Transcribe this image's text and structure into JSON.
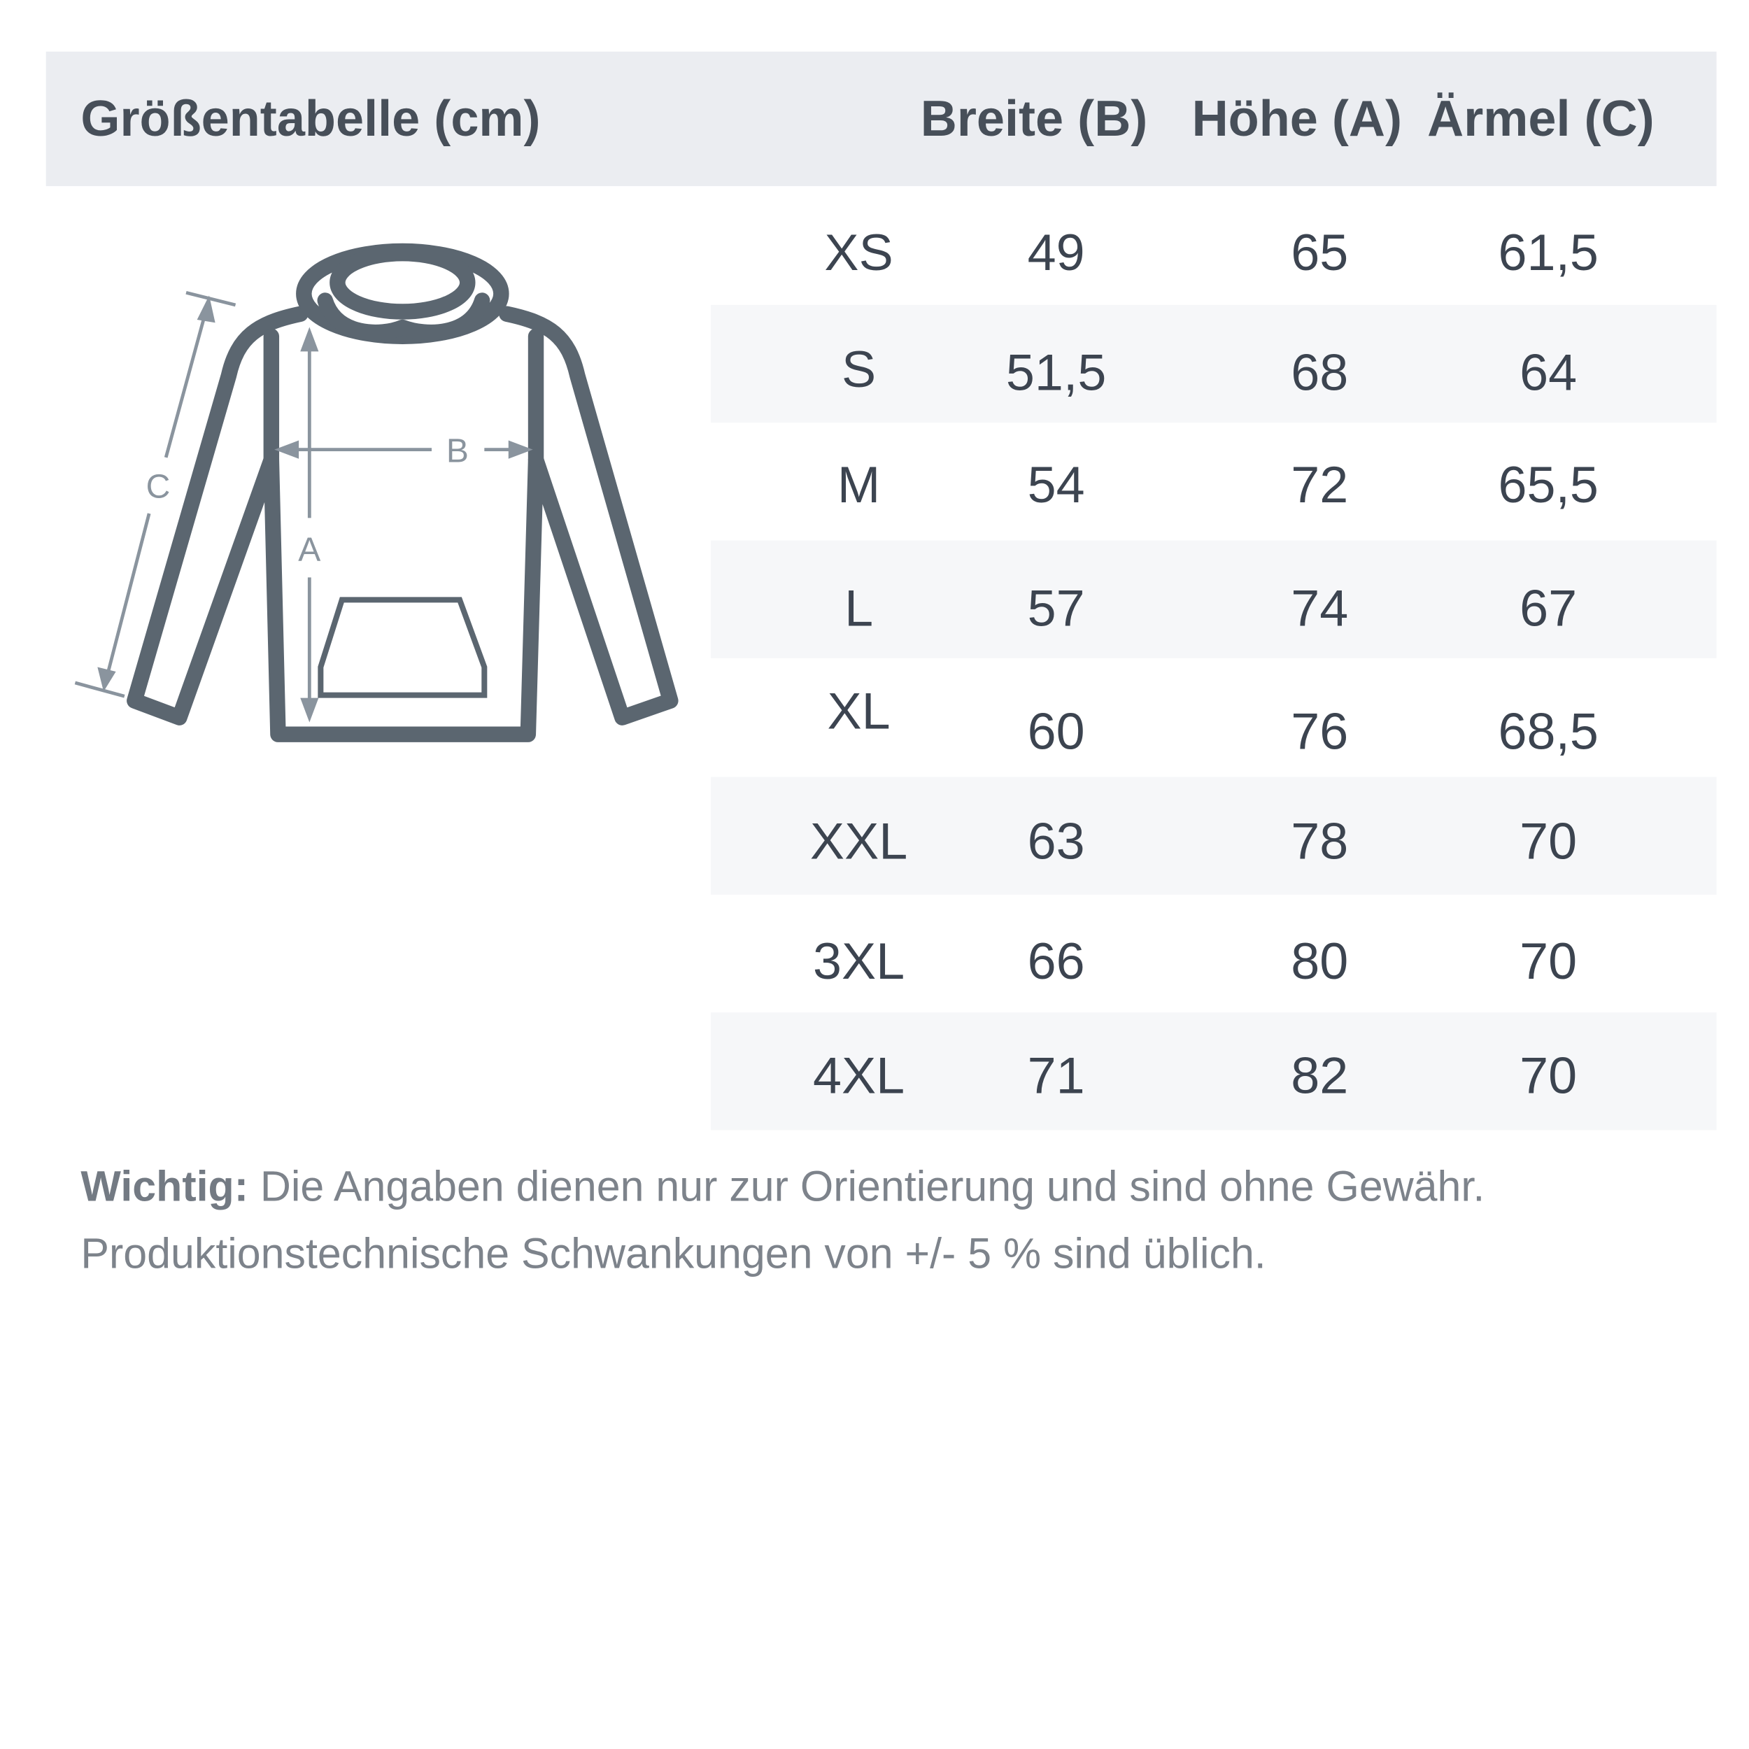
{
  "header": {
    "title": "Größentabelle (cm)",
    "columns": [
      "Breite (B)",
      "Höhe (A)",
      "Ärmel (C)"
    ]
  },
  "diagram": {
    "labels": {
      "a": "A",
      "b": "B",
      "c": "C"
    },
    "outline_color": "#5b6670",
    "measure_color": "#8a949e"
  },
  "rows": [
    {
      "size": "XS",
      "b": "49",
      "a": "65",
      "c": "61,5"
    },
    {
      "size": "S",
      "b": "51,5",
      "a": "68",
      "c": "64"
    },
    {
      "size": "M",
      "b": "54",
      "a": "72",
      "c": "65,5"
    },
    {
      "size": "L",
      "b": "57",
      "a": "74",
      "c": "67"
    },
    {
      "size": "XL",
      "b": "60",
      "a": "76",
      "c": "68,5"
    },
    {
      "size": "XXL",
      "b": "63",
      "a": "78",
      "c": "70"
    },
    {
      "size": "3XL",
      "b": "66",
      "a": "80",
      "c": "70"
    },
    {
      "size": "4XL",
      "b": "71",
      "a": "82",
      "c": "70"
    }
  ],
  "note": {
    "label": "Wichtig:",
    "line1": " Die Angaben dienen nur zur Orientierung und sind ohne Gewähr.",
    "line2": "Produktionstechnische Schwankungen von +/- 5 % sind üblich."
  }
}
